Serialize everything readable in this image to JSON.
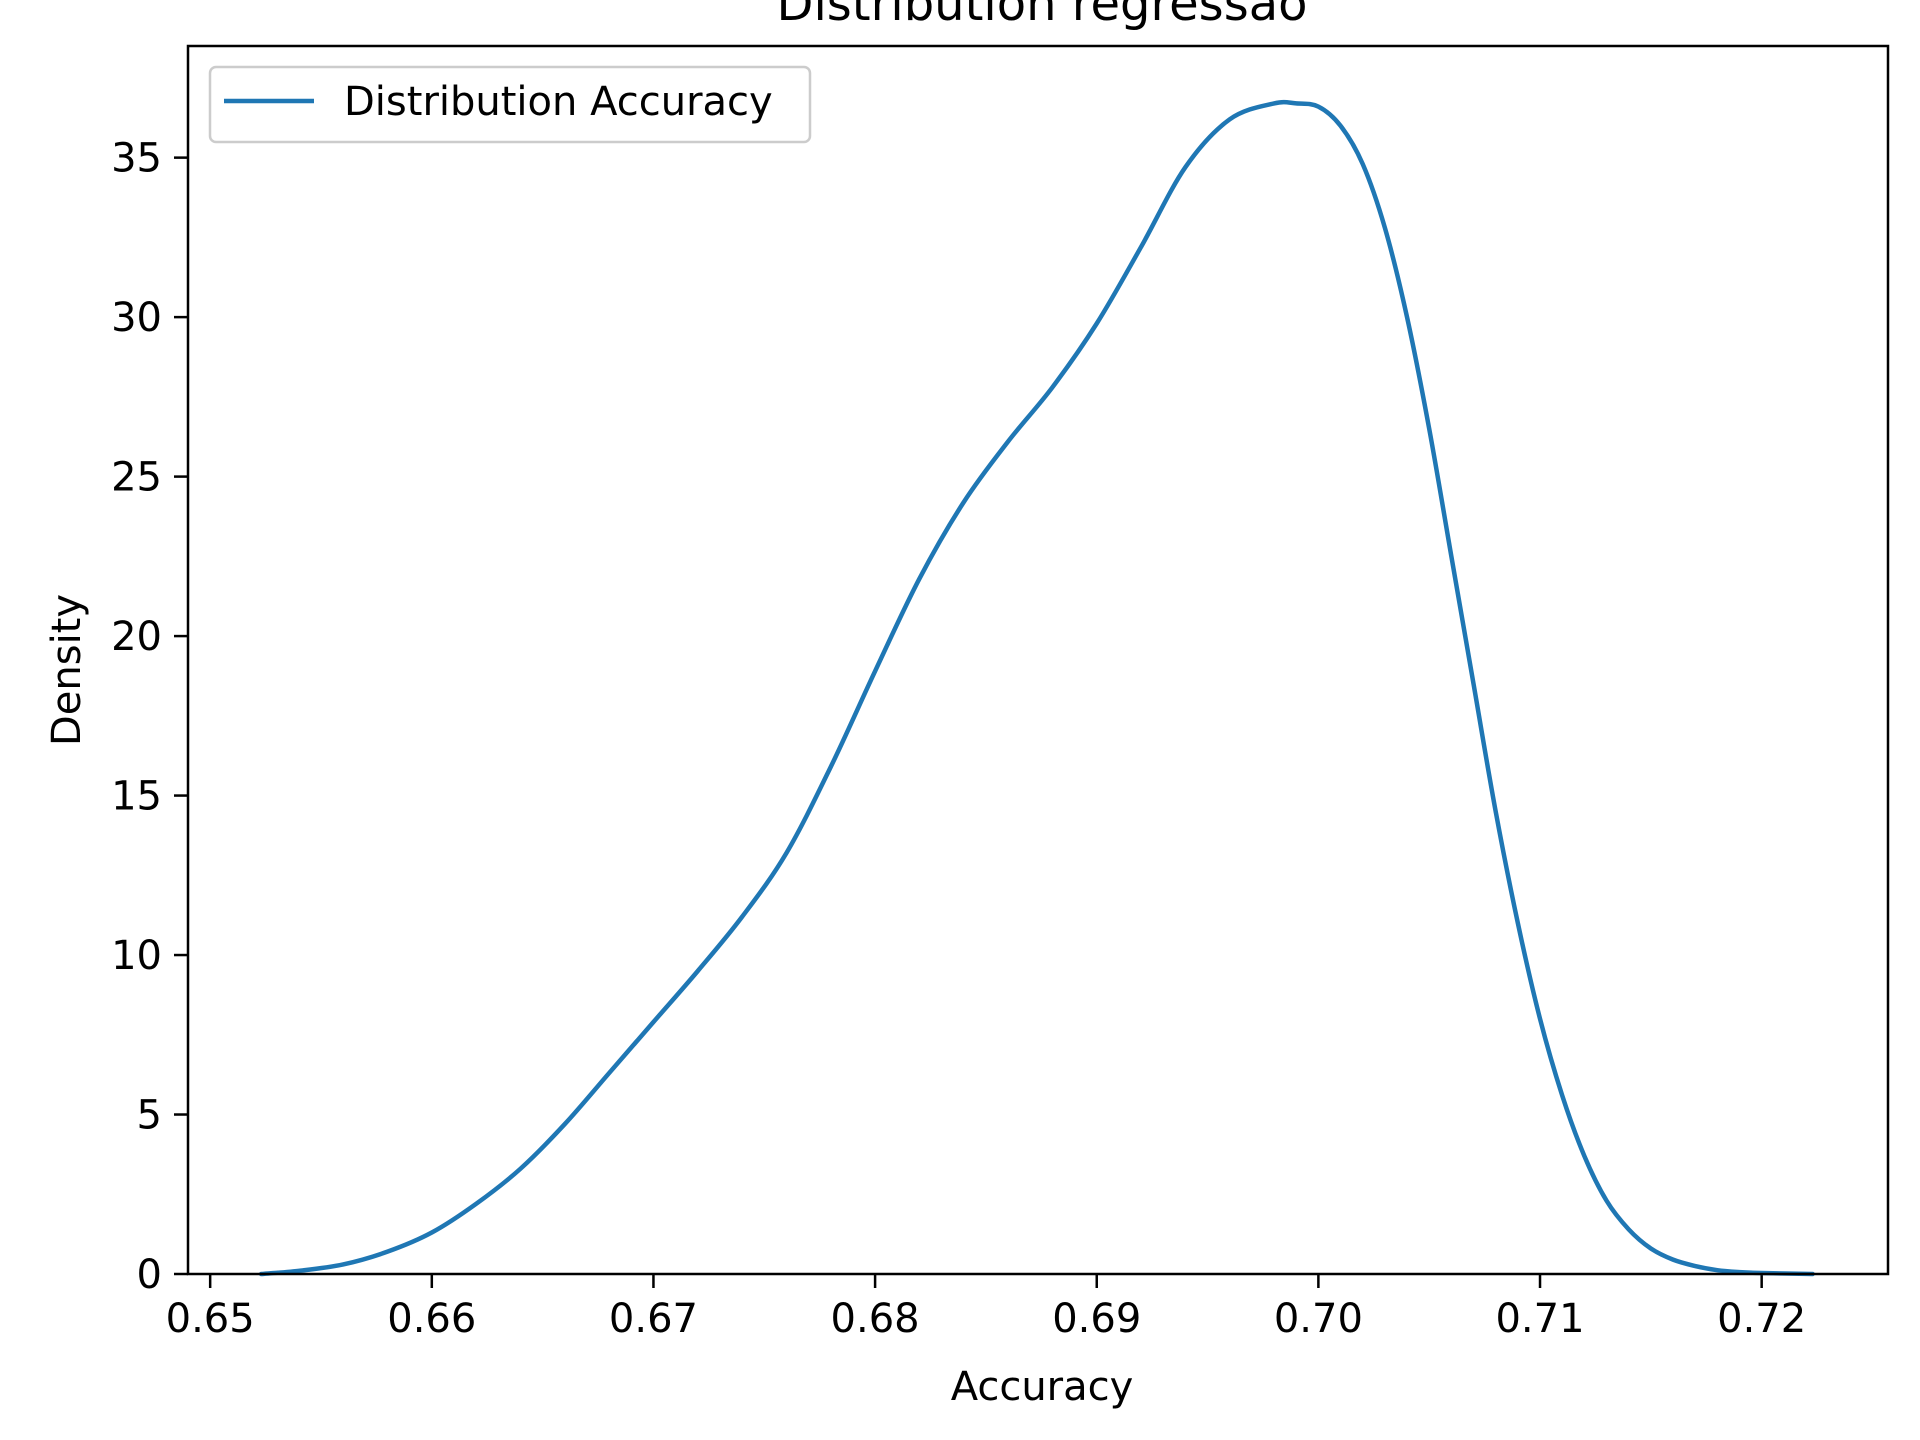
{
  "chart_data": {
    "type": "line",
    "title": "Distribution regressão",
    "xlabel": "Accuracy",
    "ylabel": "Density",
    "xlim": [
      0.649,
      0.7257
    ],
    "ylim": [
      0,
      38.5
    ],
    "xticks": [
      0.65,
      0.66,
      0.67,
      0.68,
      0.69,
      0.7,
      0.71,
      0.72
    ],
    "xtick_labels": [
      "0.65",
      "0.66",
      "0.67",
      "0.68",
      "0.69",
      "0.70",
      "0.71",
      "0.72"
    ],
    "yticks": [
      0,
      5,
      10,
      15,
      20,
      25,
      30,
      35
    ],
    "ytick_labels": [
      "0",
      "5",
      "10",
      "15",
      "20",
      "25",
      "30",
      "35"
    ],
    "grid": false,
    "legend_position": "upper-left",
    "series": [
      {
        "name": "Distribution Accuracy",
        "color": "#1f77b4",
        "x": [
          0.6523,
          0.654,
          0.656,
          0.658,
          0.66,
          0.662,
          0.664,
          0.666,
          0.668,
          0.67,
          0.672,
          0.674,
          0.676,
          0.678,
          0.68,
          0.682,
          0.684,
          0.686,
          0.688,
          0.69,
          0.692,
          0.694,
          0.696,
          0.698,
          0.699,
          0.7,
          0.701,
          0.702,
          0.703,
          0.704,
          0.705,
          0.706,
          0.707,
          0.708,
          0.709,
          0.71,
          0.711,
          0.712,
          0.713,
          0.714,
          0.715,
          0.716,
          0.717,
          0.718,
          0.719,
          0.72,
          0.7223
        ],
        "y": [
          0.0,
          0.1,
          0.3,
          0.7,
          1.3,
          2.2,
          3.3,
          4.7,
          6.3,
          7.9,
          9.5,
          11.2,
          13.2,
          15.9,
          18.9,
          21.8,
          24.2,
          26.1,
          27.8,
          29.8,
          32.2,
          34.7,
          36.2,
          36.7,
          36.7,
          36.6,
          36.0,
          34.8,
          32.8,
          30.0,
          26.5,
          22.5,
          18.5,
          14.5,
          11.0,
          8.0,
          5.6,
          3.7,
          2.3,
          1.4,
          0.8,
          0.45,
          0.25,
          0.12,
          0.06,
          0.03,
          0.0
        ]
      }
    ]
  }
}
